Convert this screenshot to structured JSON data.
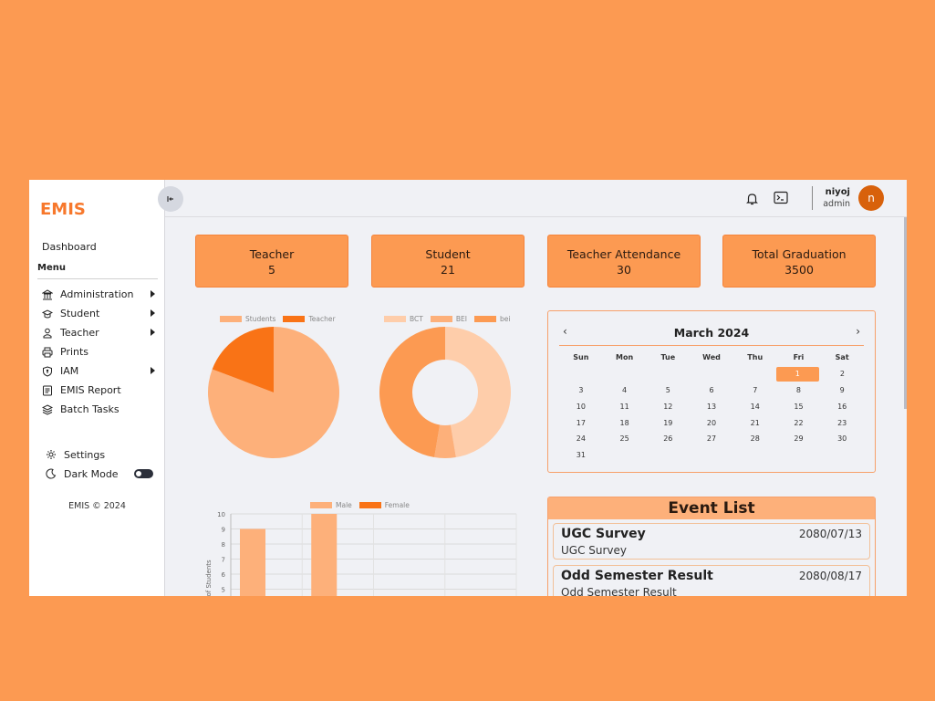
{
  "sidebar": {
    "brand": "EMIS",
    "dashboard": "Dashboard",
    "menu_heading": "Menu",
    "items": [
      {
        "label": "Administration",
        "icon": "bank-icon",
        "expandable": true
      },
      {
        "label": "Student",
        "icon": "graduation-cap-icon",
        "expandable": true
      },
      {
        "label": "Teacher",
        "icon": "person-icon",
        "expandable": true
      },
      {
        "label": "Prints",
        "icon": "printer-icon",
        "expandable": false
      },
      {
        "label": "IAM",
        "icon": "shield-icon",
        "expandable": true
      },
      {
        "label": "EMIS Report",
        "icon": "report-icon",
        "expandable": false
      },
      {
        "label": "Batch Tasks",
        "icon": "layers-icon",
        "expandable": false
      }
    ],
    "settings": "Settings",
    "dark_mode": "Dark Mode",
    "copyright": "EMIS © 2024"
  },
  "topbar": {
    "user_name": "niyoj",
    "user_role": "admin",
    "avatar_letter": "n"
  },
  "cards": [
    {
      "title": "Teacher",
      "value": "5"
    },
    {
      "title": "Student",
      "value": "21"
    },
    {
      "title": "Teacher Attendance",
      "value": "30"
    },
    {
      "title": "Total Graduation",
      "value": "3500"
    }
  ],
  "colors": {
    "accent": "#FC9A52",
    "accent_dark": "#F7782C",
    "pie_light": "#FDB07A",
    "pie_dark": "#F97316",
    "donut_pale": "#FECDAA"
  },
  "chart_data": [
    {
      "type": "pie",
      "labels": [
        "Students",
        "Teacher"
      ],
      "values": [
        21,
        5
      ]
    },
    {
      "type": "pie",
      "donut": true,
      "labels": [
        "BCT",
        "BEI",
        "bei"
      ],
      "values": [
        9,
        1,
        9
      ]
    },
    {
      "type": "bar",
      "categories": [
        "",
        "",
        "",
        ""
      ],
      "series": [
        {
          "name": "Male",
          "values": [
            9,
            10,
            null,
            null
          ]
        },
        {
          "name": "Female",
          "values": [
            null,
            null,
            null,
            null
          ]
        }
      ],
      "ylabel": "of Students",
      "yticks": [
        10,
        9,
        8,
        7,
        6,
        5
      ],
      "ylim": [
        5,
        10
      ]
    }
  ],
  "calendar": {
    "month_label": "March 2024",
    "prev": "‹",
    "next": "›",
    "weekdays": [
      "Sun",
      "Mon",
      "Tue",
      "Wed",
      "Thu",
      "Fri",
      "Sat"
    ],
    "weeks": [
      [
        "",
        "",
        "",
        "",
        "",
        "1",
        "2"
      ],
      [
        "3",
        "4",
        "5",
        "6",
        "7",
        "8",
        "9"
      ],
      [
        "10",
        "11",
        "12",
        "13",
        "14",
        "15",
        "16"
      ],
      [
        "17",
        "18",
        "19",
        "20",
        "21",
        "22",
        "23"
      ],
      [
        "24",
        "25",
        "26",
        "27",
        "28",
        "29",
        "30"
      ],
      [
        "31",
        "",
        "",
        "",
        "",
        "",
        ""
      ]
    ],
    "selected_day": "1"
  },
  "events": {
    "title": "Event List",
    "items": [
      {
        "title": "UGC Survey",
        "date": "2080/07/13",
        "desc": "UGC Survey"
      },
      {
        "title": "Odd Semester Result",
        "date": "2080/08/17",
        "desc": "Odd Semester Result"
      }
    ]
  }
}
